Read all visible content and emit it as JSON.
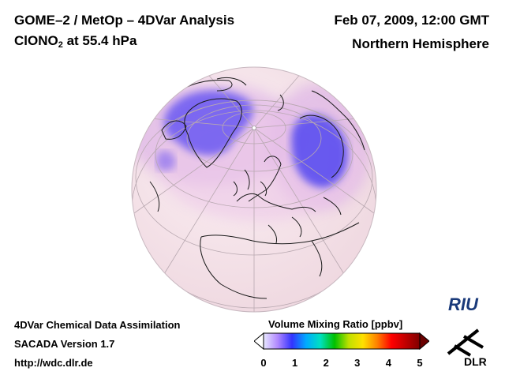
{
  "header": {
    "title": "GOME–2 / MetOp – 4DVar Analysis",
    "species_main": "ClONO",
    "species_sub": "2",
    "species_suffix": " at 55.4 hPa",
    "datetime": "Feb 07, 2009, 12:00 GMT",
    "region": "Northern Hemisphere"
  },
  "footer": {
    "line1": "4DVar Chemical Data Assimilation",
    "line2": "SACADA Version 1.7",
    "line3": "http://wdc.dlr.de"
  },
  "colorbar": {
    "title": "Volume Mixing Ratio [ppbv]",
    "ticks": [
      "0",
      "1",
      "2",
      "3",
      "4",
      "5"
    ],
    "colors": [
      "#e8e8ff",
      "#b088ff",
      "#3333ff",
      "#00aaff",
      "#00e0c0",
      "#00c000",
      "#c0e000",
      "#ffe000",
      "#ff8000",
      "#ff0000",
      "#c00000",
      "#800000"
    ]
  },
  "map": {
    "background_color": "#f3dfe6",
    "high_color": "#5a4ef0",
    "mid_color": "#c49ce4"
  },
  "logos": {
    "riu": "RIU",
    "dlr": "DLR"
  }
}
